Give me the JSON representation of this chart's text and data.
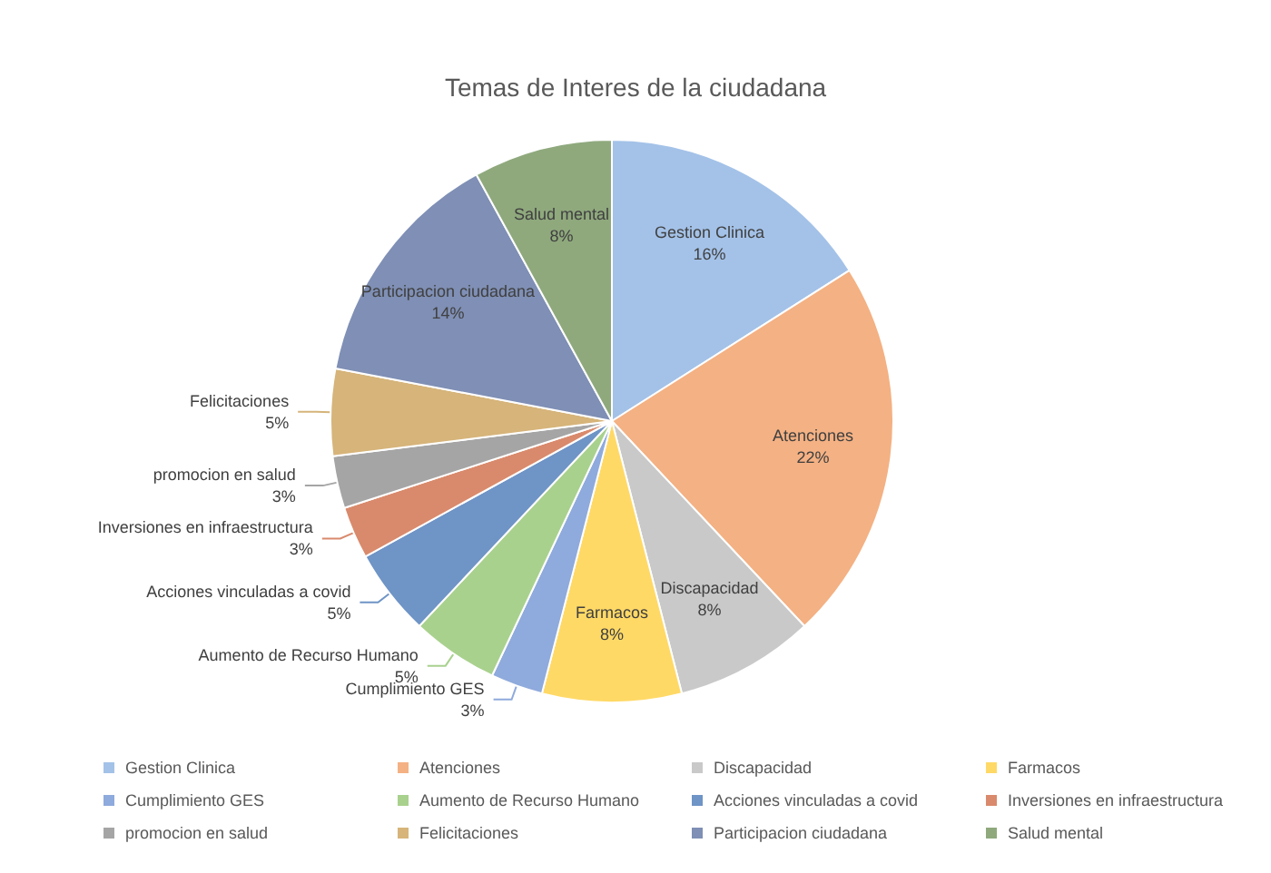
{
  "chart_data": {
    "type": "pie",
    "title": "Temas de Interes de la ciudadana",
    "categories": [
      "Gestion Clinica",
      "Atenciones",
      "Discapacidad",
      "Farmacos",
      "Cumplimiento GES",
      "Aumento de Recurso Humano",
      "Acciones vinculadas a covid",
      "Inversiones en infraestructura",
      "promocion en salud",
      "Felicitaciones",
      "Participacion ciudadana",
      "Salud mental"
    ],
    "values": [
      16,
      22,
      8,
      8,
      3,
      5,
      5,
      3,
      3,
      5,
      14,
      8
    ],
    "value_labels": [
      "16%",
      "22%",
      "8%",
      "8%",
      "3%",
      "5%",
      "5%",
      "3%",
      "3%",
      "5%",
      "14%",
      "8%"
    ],
    "colors": [
      "#a4c2e8",
      "#f4b183",
      "#c9c9c9",
      "#ffd966",
      "#8faadc",
      "#a9d18e",
      "#6f94c6",
      "#d98a6c",
      "#a5a5a5",
      "#d6b47a",
      "#7f8fb5",
      "#8fa97d"
    ],
    "legend": "bottom"
  }
}
